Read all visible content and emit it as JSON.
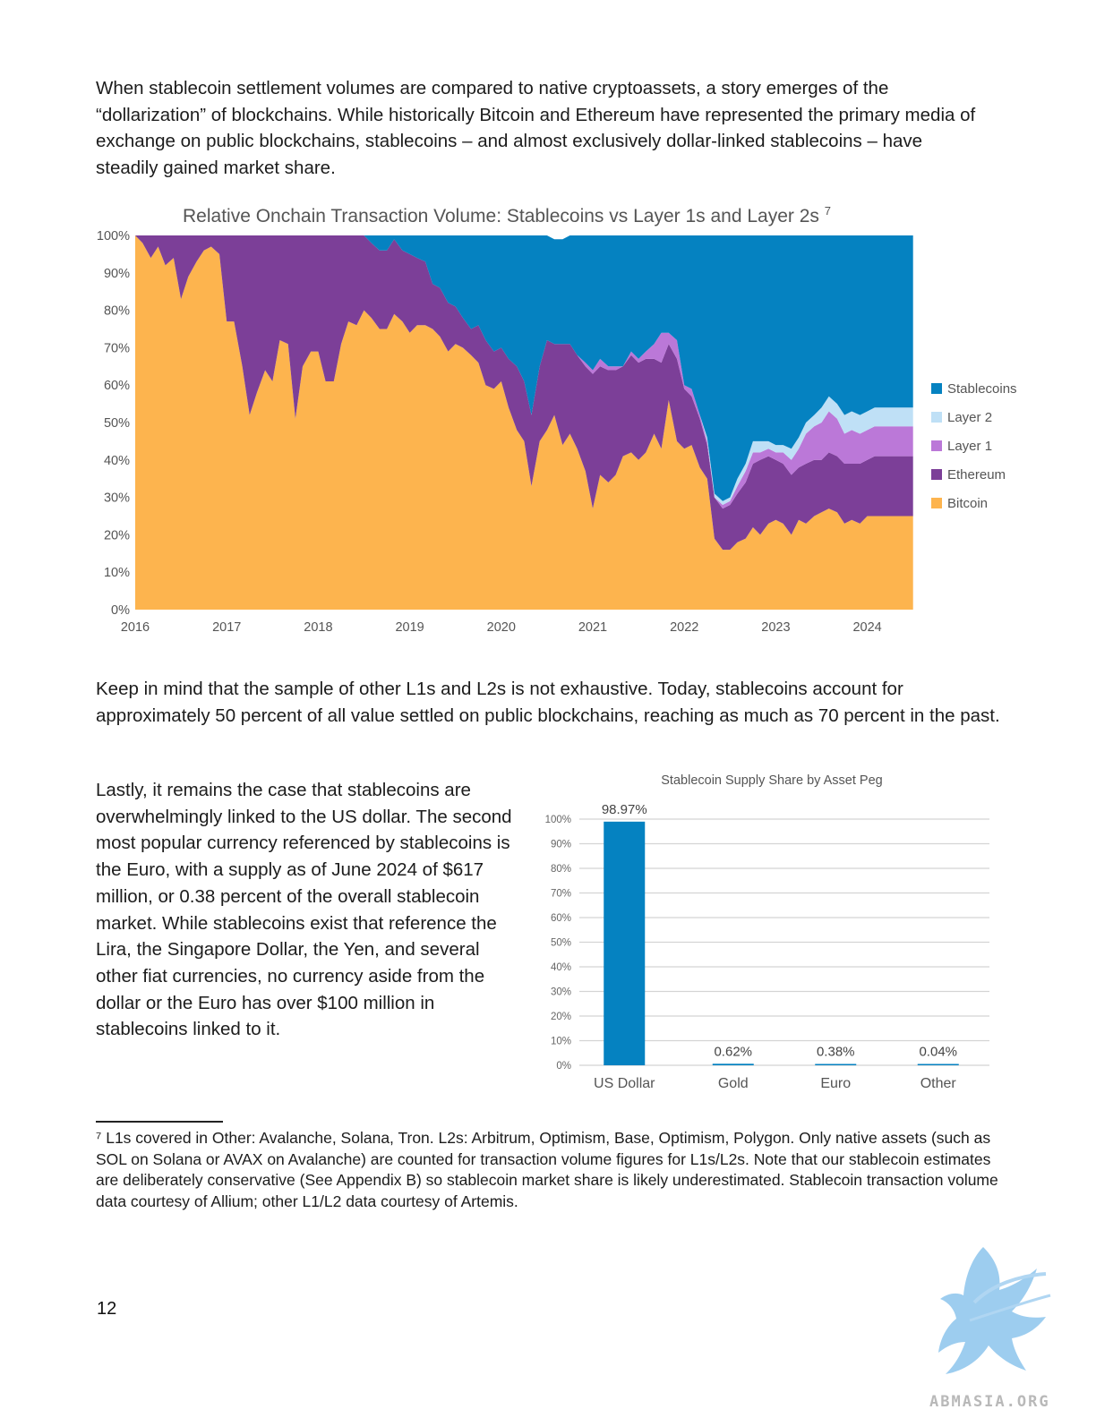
{
  "paragraphs": {
    "p1": "When stablecoin settlement volumes are compared to native cryptoassets, a story emerges of the “dollarization” of blockchains. While historically Bitcoin and Ethereum have represented the primary media of exchange on public blockchains, stablecoins – and almost exclusively dollar-linked stablecoins – have steadily gained market share.",
    "p2": "Keep in mind that the sample of other L1s and L2s is not exhaustive. Today, stablecoins account for approximately 50 percent of all value settled on public blockchains, reaching as much as 70 percent in the past.",
    "p3": "Lastly, it remains the case that stablecoins are overwhelmingly linked to the US dollar. The second most popular currency referenced by stablecoins is the Euro, with a supply as of June 2024 of $617 million, or 0.38 percent of the overall stablecoin market. While stablecoins exist that reference the Lira, the Singapore Dollar, the Yen, and several other fiat currencies, no currency aside from the dollar or the Euro has over $100 million in stablecoins linked to it."
  },
  "footnote": {
    "marker": "⁷",
    "text": "L1s covered in Other: Avalanche, Solana, Tron. L2s: Arbitrum, Optimism, Base, Optimism, Polygon. Only native assets (such as SOL on Solana or AVAX on Avalanche) are counted for transaction volume figures for L1s/L2s. Note that our stablecoin estimates are deliberately conservative (See Appendix B) so stablecoin market share is likely underestimated. Stablecoin transaction volume data courtesy of Allium; other L1/L2 data courtesy of Artemis."
  },
  "page_number": "12",
  "watermark": {
    "text": "ABMASIA.ORG",
    "color": "#7fb7e0"
  },
  "chart_data": [
    {
      "type": "area",
      "stacked": true,
      "normalized": true,
      "title": "Relative Onchain Transaction Volume: Stablecoins vs Layer 1s and Layer 2s",
      "title_footnote": "7",
      "xlabel": "",
      "ylabel": "",
      "ylim": [
        0,
        100
      ],
      "y_ticks": [
        "0%",
        "10%",
        "20%",
        "30%",
        "40%",
        "50%",
        "60%",
        "70%",
        "80%",
        "90%",
        "100%"
      ],
      "x_ticks": [
        "2016",
        "2017",
        "2018",
        "2019",
        "2020",
        "2021",
        "2022",
        "2023",
        "2024"
      ],
      "legend_position": "right",
      "x": [
        2016.0,
        2016.08,
        2016.17,
        2016.25,
        2016.33,
        2016.42,
        2016.5,
        2016.58,
        2016.67,
        2016.75,
        2016.83,
        2016.92,
        2017.0,
        2017.08,
        2017.17,
        2017.25,
        2017.33,
        2017.42,
        2017.5,
        2017.58,
        2017.67,
        2017.75,
        2017.83,
        2017.92,
        2018.0,
        2018.08,
        2018.17,
        2018.25,
        2018.33,
        2018.42,
        2018.5,
        2018.58,
        2018.67,
        2018.75,
        2018.83,
        2018.92,
        2019.0,
        2019.08,
        2019.17,
        2019.25,
        2019.33,
        2019.42,
        2019.5,
        2019.58,
        2019.67,
        2019.75,
        2019.83,
        2019.92,
        2020.0,
        2020.08,
        2020.17,
        2020.25,
        2020.33,
        2020.42,
        2020.5,
        2020.58,
        2020.67,
        2020.75,
        2020.83,
        2020.92,
        2021.0,
        2021.08,
        2021.17,
        2021.25,
        2021.33,
        2021.42,
        2021.5,
        2021.58,
        2021.67,
        2021.75,
        2021.83,
        2021.92,
        2022.0,
        2022.08,
        2022.17,
        2022.25,
        2022.33,
        2022.42,
        2022.5,
        2022.58,
        2022.67,
        2022.75,
        2022.83,
        2022.92,
        2023.0,
        2023.08,
        2023.17,
        2023.25,
        2023.33,
        2023.42,
        2023.5,
        2023.58,
        2023.67,
        2023.75,
        2023.83,
        2023.92,
        2024.0,
        2024.08,
        2024.17,
        2024.25,
        2024.33,
        2024.42,
        2024.5
      ],
      "series": [
        {
          "name": "Bitcoin",
          "color": "#fdb44e",
          "values": [
            100,
            98,
            94,
            97,
            92,
            94,
            83,
            89,
            93,
            96,
            97,
            95,
            77,
            77,
            65,
            52,
            58,
            64,
            61,
            72,
            71,
            51,
            65,
            69,
            69,
            61,
            61,
            71,
            77,
            76,
            80,
            78,
            75,
            75,
            79,
            77,
            74,
            76,
            76,
            75,
            73,
            69,
            71,
            70,
            68,
            66,
            60,
            59,
            61,
            54,
            48,
            45,
            33,
            45,
            48,
            52,
            44,
            47,
            43,
            37,
            27,
            36,
            34,
            36,
            41,
            42,
            40,
            42,
            47,
            43,
            56,
            45,
            43,
            44,
            38,
            35,
            19,
            16,
            16,
            18,
            19,
            22,
            20,
            23,
            24,
            23,
            20,
            24,
            23,
            25,
            26,
            27,
            26,
            23,
            24,
            23,
            25,
            25,
            25,
            25,
            25,
            25,
            25
          ]
        },
        {
          "name": "Ethereum",
          "color": "#7c3f98",
          "values": [
            0,
            2,
            6,
            3,
            8,
            6,
            17,
            11,
            7,
            4,
            3,
            5,
            23,
            23,
            35,
            48,
            42,
            36,
            39,
            28,
            29,
            49,
            35,
            31,
            31,
            39,
            39,
            29,
            23,
            24,
            20,
            20,
            21,
            21,
            20,
            19,
            21,
            18,
            17,
            12,
            13,
            13,
            10,
            8,
            7,
            10,
            12,
            10,
            9,
            13,
            17,
            16,
            19,
            20,
            24,
            19,
            27,
            24,
            25,
            28,
            36,
            29,
            30,
            28,
            24,
            26,
            26,
            25,
            20,
            23,
            15,
            22,
            16,
            13,
            13,
            9,
            11,
            11,
            12,
            13,
            15,
            17,
            20,
            18,
            16,
            16,
            16,
            14,
            16,
            15,
            14,
            15,
            15,
            16,
            15,
            16,
            15,
            16,
            16,
            16,
            16,
            16,
            16
          ]
        },
        {
          "name": "Layer 1",
          "color": "#bb78d8",
          "values": [
            0,
            0,
            0,
            0,
            0,
            0,
            0,
            0,
            0,
            0,
            0,
            0,
            0,
            0,
            0,
            0,
            0,
            0,
            0,
            0,
            0,
            0,
            0,
            0,
            0,
            0,
            0,
            0,
            0,
            0,
            0,
            0,
            0,
            0,
            0,
            0,
            0,
            0,
            0,
            0,
            0,
            0,
            0,
            0,
            0,
            0,
            0,
            0,
            0,
            0,
            0,
            0,
            0,
            0,
            0,
            0,
            0,
            0,
            0,
            1,
            1,
            2,
            1,
            1,
            0,
            1,
            1,
            2,
            4,
            8,
            3,
            5,
            1,
            2,
            1,
            1,
            0,
            1,
            1,
            2,
            3,
            3,
            2,
            2,
            2,
            3,
            4,
            5,
            8,
            9,
            10,
            11,
            10,
            8,
            9,
            8,
            8,
            8,
            8,
            8,
            8,
            8,
            8
          ]
        },
        {
          "name": "Layer 2",
          "color": "#bfe0f6",
          "values": [
            0,
            0,
            0,
            0,
            0,
            0,
            0,
            0,
            0,
            0,
            0,
            0,
            0,
            0,
            0,
            0,
            0,
            0,
            0,
            0,
            0,
            0,
            0,
            0,
            0,
            0,
            0,
            0,
            0,
            0,
            0,
            0,
            0,
            0,
            0,
            0,
            0,
            0,
            0,
            0,
            0,
            0,
            0,
            0,
            0,
            0,
            0,
            0,
            0,
            0,
            0,
            0,
            0,
            0,
            0,
            0,
            0,
            0,
            0,
            0,
            0,
            0,
            0,
            0,
            0,
            0,
            0,
            0,
            0,
            0,
            0,
            0,
            0,
            0,
            0,
            1,
            1,
            1,
            1,
            2,
            2,
            3,
            3,
            2,
            2,
            2,
            3,
            3,
            3,
            3,
            4,
            4,
            4,
            5,
            5,
            5,
            5,
            5,
            5,
            5,
            5,
            5,
            5
          ]
        },
        {
          "name": "Stablecoins",
          "color": "#0582c1",
          "values": [
            0,
            0,
            0,
            0,
            0,
            0,
            0,
            0,
            0,
            0,
            0,
            0,
            0,
            0,
            0,
            0,
            0,
            0,
            0,
            0,
            0,
            0,
            0,
            0,
            0,
            0,
            0,
            0,
            0,
            0,
            0,
            2,
            4,
            4,
            1,
            4,
            5,
            6,
            7,
            13,
            14,
            18,
            19,
            22,
            25,
            24,
            28,
            31,
            30,
            33,
            35,
            39,
            48,
            35,
            28,
            28,
            28,
            29,
            32,
            34,
            36,
            33,
            35,
            35,
            35,
            31,
            33,
            31,
            29,
            26,
            26,
            28,
            40,
            41,
            48,
            54,
            69,
            71,
            70,
            65,
            61,
            55,
            55,
            55,
            56,
            56,
            57,
            54,
            50,
            48,
            46,
            43,
            45,
            48,
            47,
            48,
            47,
            46,
            46,
            46,
            46,
            46,
            46
          ]
        }
      ]
    },
    {
      "type": "bar",
      "title": "Stablecoin Supply Share by Asset Peg",
      "xlabel": "",
      "ylabel": "",
      "ylim": [
        0,
        100
      ],
      "y_ticks": [
        "0%",
        "10%",
        "20%",
        "30%",
        "40%",
        "50%",
        "60%",
        "70%",
        "80%",
        "90%",
        "100%"
      ],
      "categories": [
        "US Dollar",
        "Gold",
        "Euro",
        "Other"
      ],
      "values": [
        98.97,
        0.62,
        0.38,
        0.04
      ],
      "labels": [
        "98.97%",
        "0.62%",
        "0.38%",
        "0.04%"
      ],
      "color": "#0582c1",
      "grid": true
    }
  ]
}
